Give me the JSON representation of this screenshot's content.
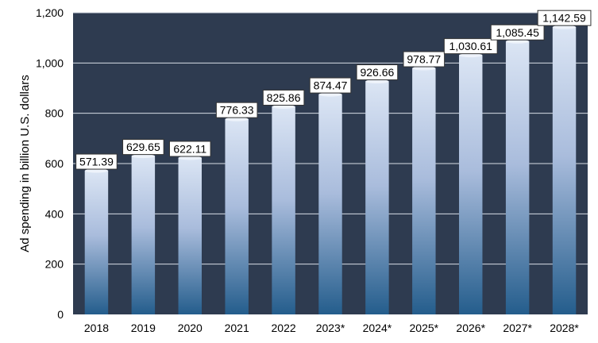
{
  "chart_data": {
    "type": "bar",
    "ylabel": "Ad spending in billion U.S. dollars",
    "categories": [
      "2018",
      "2019",
      "2020",
      "2021",
      "2022",
      "2023*",
      "2024*",
      "2025*",
      "2026*",
      "2027*",
      "2028*"
    ],
    "values": [
      571.39,
      629.65,
      622.11,
      776.33,
      825.86,
      874.47,
      926.66,
      978.77,
      1030.61,
      1085.45,
      1142.59
    ],
    "data_labels": [
      "571.39",
      "629.65",
      "622.11",
      "776.33",
      "825.86",
      "874.47",
      "926.66",
      "978.77",
      "1,030.61",
      "1,085.45",
      "1,142.59"
    ],
    "y_ticks": [
      0,
      200,
      400,
      600,
      800,
      1000,
      1200
    ],
    "y_tick_labels": [
      "0",
      "200",
      "400",
      "600",
      "800",
      "1,000",
      "1,200"
    ],
    "ylim": [
      0,
      1200
    ],
    "grid": true,
    "colors": {
      "plot_background": "#2e3b50",
      "gridline": "#d8dde6",
      "bar_top": "#dbe5f4",
      "bar_bottom": "#245d8c",
      "label_box_fill": "#ffffff",
      "label_box_border": "#333333"
    }
  }
}
